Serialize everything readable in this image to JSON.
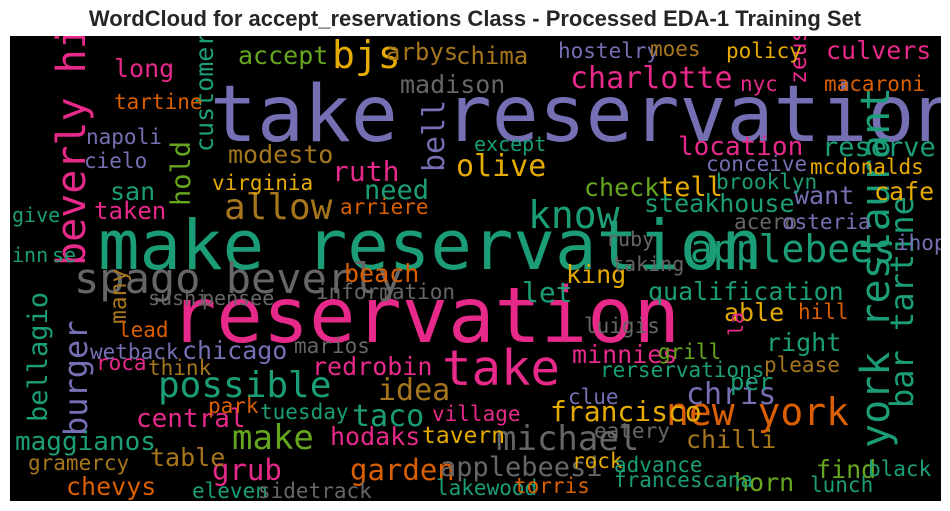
{
  "chart_data": {
    "type": "wordcloud",
    "title": "WordCloud for accept_reservations Class - Processed EDA-1 Training Set",
    "background": "#000000",
    "colormap": [
      "#7570b3",
      "#1b9e77",
      "#e7298a",
      "#d95f02",
      "#66a61e",
      "#e6ab02",
      "#a6761d",
      "#666666"
    ],
    "words": [
      {
        "text": "take reservation",
        "weight": 1.0,
        "color": "#7570b3"
      },
      {
        "text": "reservation",
        "weight": 0.98,
        "color": "#e7298a"
      },
      {
        "text": "make reservation",
        "weight": 0.86,
        "color": "#1b9e77"
      },
      {
        "text": "take",
        "weight": 0.56,
        "color": "#e7298a"
      },
      {
        "text": "spago beverly",
        "weight": 0.45,
        "color": "#666666"
      },
      {
        "text": "beverly hill",
        "weight": 0.42,
        "color": "#e7298a"
      },
      {
        "text": "york restaurant",
        "weight": 0.42,
        "color": "#1b9e77"
      },
      {
        "text": "know",
        "weight": 0.4,
        "color": "#1b9e77"
      },
      {
        "text": "applebees",
        "weight": 0.4,
        "color": "#1b9e77"
      },
      {
        "text": "new york",
        "weight": 0.4,
        "color": "#d95f02"
      },
      {
        "text": "bjs",
        "weight": 0.4,
        "color": "#e6ab02"
      },
      {
        "text": "possible",
        "weight": 0.37,
        "color": "#1b9e77"
      },
      {
        "text": "allow",
        "weight": 0.36,
        "color": "#a6761d"
      },
      {
        "text": "make",
        "weight": 0.34,
        "color": "#66a61e"
      },
      {
        "text": "michael",
        "weight": 0.33,
        "color": "#666666"
      },
      {
        "text": "bar tartine",
        "weight": 0.3,
        "color": "#1b9e77"
      },
      {
        "text": "burger",
        "weight": 0.3,
        "color": "#7570b3"
      },
      {
        "text": "charlotte",
        "weight": 0.28,
        "color": "#e7298a"
      },
      {
        "text": "olive",
        "weight": 0.27,
        "color": "#e6ab02"
      },
      {
        "text": "idea",
        "weight": 0.27,
        "color": "#a6761d"
      },
      {
        "text": "taco",
        "weight": 0.27,
        "color": "#1b9e77"
      },
      {
        "text": "chris",
        "weight": 0.27,
        "color": "#7570b3"
      },
      {
        "text": "bell",
        "weight": 0.27,
        "color": "#7570b3"
      },
      {
        "text": "garden",
        "weight": 0.26,
        "color": "#d95f02"
      },
      {
        "text": "grub",
        "weight": 0.25,
        "color": "#e7298a"
      },
      {
        "text": "francisco",
        "weight": 0.24,
        "color": "#e6ab02"
      },
      {
        "text": "ruth",
        "weight": 0.24,
        "color": "#e7298a"
      },
      {
        "text": "let",
        "weight": 0.24,
        "color": "#1b9e77"
      },
      {
        "text": "reserve",
        "weight": 0.23,
        "color": "#1b9e77"
      },
      {
        "text": "bellagio",
        "weight": 0.22,
        "color": "#1b9e77"
      },
      {
        "text": "hold",
        "weight": 0.22,
        "color": "#66a61e"
      },
      {
        "text": "need",
        "weight": 0.22,
        "color": "#1b9e77"
      },
      {
        "text": "tell",
        "weight": 0.22,
        "color": "#e6ab02"
      },
      {
        "text": "applebeesi",
        "weight": 0.22,
        "color": "#666666"
      },
      {
        "text": "location",
        "weight": 0.21,
        "color": "#e7298a"
      },
      {
        "text": "central",
        "weight": 0.21,
        "color": "#e7298a"
      },
      {
        "text": "maggianos",
        "weight": 0.21,
        "color": "#1b9e77"
      },
      {
        "text": "accept",
        "weight": 0.2,
        "color": "#66a61e"
      },
      {
        "text": "long",
        "weight": 0.2,
        "color": "#e7298a"
      },
      {
        "text": "culvers",
        "weight": 0.2,
        "color": "#e7298a"
      },
      {
        "text": "madison",
        "weight": 0.2,
        "color": "#666666"
      },
      {
        "text": "customer",
        "weight": 0.2,
        "color": "#1b9e77"
      },
      {
        "text": "modesto",
        "weight": 0.2,
        "color": "#a6761d"
      },
      {
        "text": "san",
        "weight": 0.2,
        "color": "#1b9e77"
      },
      {
        "text": "check",
        "weight": 0.2,
        "color": "#66a61e"
      },
      {
        "text": "want",
        "weight": 0.2,
        "color": "#7570b3"
      },
      {
        "text": "cafe",
        "weight": 0.2,
        "color": "#e6ab02"
      },
      {
        "text": "steakhouse",
        "weight": 0.2,
        "color": "#1b9e77"
      },
      {
        "text": "beach",
        "weight": 0.2,
        "color": "#d95f02"
      },
      {
        "text": "king",
        "weight": 0.2,
        "color": "#e6ab02"
      },
      {
        "text": "qualification",
        "weight": 0.2,
        "color": "#1b9e77"
      },
      {
        "text": "able",
        "weight": 0.2,
        "color": "#e6ab02"
      },
      {
        "text": "right",
        "weight": 0.2,
        "color": "#1b9e77"
      },
      {
        "text": "chicago",
        "weight": 0.2,
        "color": "#7570b3"
      },
      {
        "text": "redrobin",
        "weight": 0.2,
        "color": "#e7298a"
      },
      {
        "text": "minnies",
        "weight": 0.2,
        "color": "#e7298a"
      },
      {
        "text": "hodaks",
        "weight": 0.2,
        "color": "#e7298a"
      },
      {
        "text": "chilli",
        "weight": 0.2,
        "color": "#a6761d"
      },
      {
        "text": "table",
        "weight": 0.2,
        "color": "#a6761d"
      },
      {
        "text": "chevys",
        "weight": 0.2,
        "color": "#d95f02"
      },
      {
        "text": "horn",
        "weight": 0.2,
        "color": "#66a61e"
      },
      {
        "text": "find",
        "weight": 0.2,
        "color": "#66a61e"
      },
      {
        "text": "taken",
        "weight": 0.18,
        "color": "#e7298a"
      },
      {
        "text": "arbys",
        "weight": 0.18,
        "color": "#a6761d"
      },
      {
        "text": "chima",
        "weight": 0.18,
        "color": "#a6761d"
      },
      {
        "text": "zeus",
        "weight": 0.16,
        "color": "#e7298a"
      },
      {
        "text": "many",
        "weight": 0.16,
        "color": "#a6761d"
      },
      {
        "text": "per",
        "weight": 0.18,
        "color": "#1b9e77"
      },
      {
        "text": "tavern",
        "weight": 0.16,
        "color": "#e6ab02"
      },
      {
        "text": "hostelry",
        "weight": 0.14,
        "color": "#7570b3"
      },
      {
        "text": "moes",
        "weight": 0.14,
        "color": "#a6761d"
      },
      {
        "text": "policy",
        "weight": 0.14,
        "color": "#e6ab02"
      },
      {
        "text": "nyc",
        "weight": 0.14,
        "color": "#e7298a"
      },
      {
        "text": "macaroni",
        "weight": 0.14,
        "color": "#d95f02"
      },
      {
        "text": "tartine",
        "weight": 0.14,
        "color": "#d95f02"
      },
      {
        "text": "napoli",
        "weight": 0.14,
        "color": "#7570b3"
      },
      {
        "text": "cielo",
        "weight": 0.14,
        "color": "#7570b3"
      },
      {
        "text": "except",
        "weight": 0.12,
        "color": "#1b9e77"
      },
      {
        "text": "conceive",
        "weight": 0.14,
        "color": "#7570b3"
      },
      {
        "text": "mcdonalds",
        "weight": 0.14,
        "color": "#e6ab02"
      },
      {
        "text": "virginia",
        "weight": 0.14,
        "color": "#e6ab02"
      },
      {
        "text": "brooklyn",
        "weight": 0.14,
        "color": "#1b9e77"
      },
      {
        "text": "arriere",
        "weight": 0.14,
        "color": "#d95f02"
      },
      {
        "text": "acero",
        "weight": 0.13,
        "color": "#666666"
      },
      {
        "text": "osteria",
        "weight": 0.13,
        "color": "#7570b3"
      },
      {
        "text": "give",
        "weight": 0.12,
        "color": "#1b9e77"
      },
      {
        "text": "ihop",
        "weight": 0.14,
        "color": "#7570b3"
      },
      {
        "text": "ruby",
        "weight": 0.12,
        "color": "#666666"
      },
      {
        "text": "inn",
        "weight": 0.12,
        "color": "#1b9e77"
      },
      {
        "text": "se",
        "weight": 0.12,
        "color": "#1b9e77"
      },
      {
        "text": "taking",
        "weight": 0.12,
        "color": "#666666"
      },
      {
        "text": "sushi",
        "weight": 0.12,
        "color": "#666666"
      },
      {
        "text": "pensee",
        "weight": 0.12,
        "color": "#666666"
      },
      {
        "text": "information",
        "weight": 0.13,
        "color": "#666666"
      },
      {
        "text": "hill",
        "weight": 0.14,
        "color": "#d95f02"
      },
      {
        "text": "lead",
        "weight": 0.14,
        "color": "#d95f02"
      },
      {
        "text": "luigis",
        "weight": 0.13,
        "color": "#666666"
      },
      {
        "text": "la",
        "weight": 0.12,
        "color": "#e7298a"
      },
      {
        "text": "wetback",
        "weight": 0.14,
        "color": "#7570b3"
      },
      {
        "text": "marios",
        "weight": 0.13,
        "color": "#666666"
      },
      {
        "text": "grill",
        "weight": 0.14,
        "color": "#66a61e"
      },
      {
        "text": "roca",
        "weight": 0.13,
        "color": "#e7298a"
      },
      {
        "text": "think",
        "weight": 0.14,
        "color": "#a6761d"
      },
      {
        "text": "rerservations",
        "weight": 0.14,
        "color": "#1b9e77"
      },
      {
        "text": "please",
        "weight": 0.13,
        "color": "#a6761d"
      },
      {
        "text": "clue",
        "weight": 0.13,
        "color": "#7570b3"
      },
      {
        "text": "park",
        "weight": 0.13,
        "color": "#d95f02"
      },
      {
        "text": "tuesday",
        "weight": 0.13,
        "color": "#1b9e77"
      },
      {
        "text": "village",
        "weight": 0.13,
        "color": "#e7298a"
      },
      {
        "text": "eatery",
        "weight": 0.13,
        "color": "#666666"
      },
      {
        "text": "gramercy",
        "weight": 0.13,
        "color": "#a6761d"
      },
      {
        "text": "rock",
        "weight": 0.13,
        "color": "#e6ab02"
      },
      {
        "text": "advance",
        "weight": 0.13,
        "color": "#1b9e77"
      },
      {
        "text": "black",
        "weight": 0.13,
        "color": "#1b9e77"
      },
      {
        "text": "francescana",
        "weight": 0.13,
        "color": "#1b9e77"
      },
      {
        "text": "eleven",
        "weight": 0.13,
        "color": "#1b9e77"
      },
      {
        "text": "sidetrack",
        "weight": 0.13,
        "color": "#666666"
      },
      {
        "text": "lakewood",
        "weight": 0.13,
        "color": "#1b9e77"
      },
      {
        "text": "torris",
        "weight": 0.13,
        "color": "#d95f02"
      },
      {
        "text": "lunch",
        "weight": 0.13,
        "color": "#1b9e77"
      }
    ]
  }
}
